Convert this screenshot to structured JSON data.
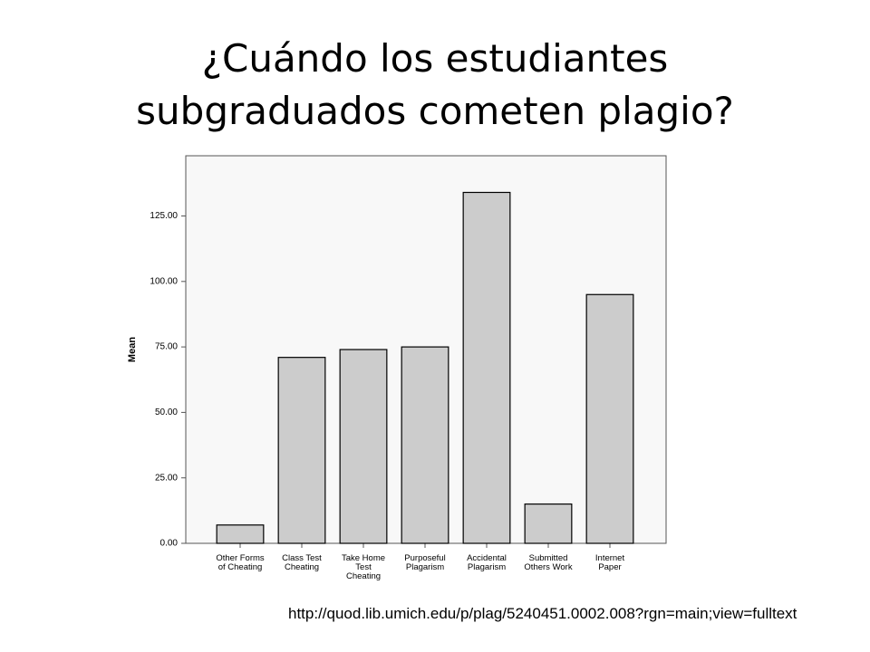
{
  "chart_data": {
    "type": "bar",
    "title": "¿Cuándo los estudiantes subgraduados cometen plagio?",
    "y_label": "Mean",
    "categories": [
      "Other Forms\nof Cheating",
      "Class Test\nCheating",
      "Take Home\nTest\nCheating",
      "Purposeful\nPlagarism",
      "Accidental\nPlagarism",
      "Submitted\nOthers Work",
      "Internet\nPaper"
    ],
    "values": [
      7,
      71,
      74,
      75,
      134,
      15,
      95
    ],
    "color": "#cccccc",
    "ylim": [
      0,
      148
    ],
    "yticks": [
      {
        "value": 0,
        "label": "0.00"
      },
      {
        "value": 25,
        "label": "25.00"
      },
      {
        "value": 50,
        "label": "50.00"
      },
      {
        "value": 75,
        "label": "75.00"
      },
      {
        "value": 100,
        "label": "100.00"
      },
      {
        "value": 125,
        "label": "125.00"
      }
    ],
    "source": "http://quod.lib.umich.edu/p/plag/5240451.0002.008?rgn=main;view=fulltext"
  }
}
